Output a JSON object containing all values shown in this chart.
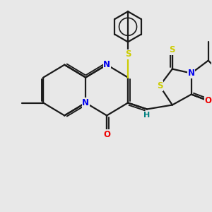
{
  "background_color": "#e8e8e8",
  "bond_color": "#1a1a1a",
  "bond_width": 1.6,
  "atom_colors": {
    "N": "#0000ee",
    "O": "#ee0000",
    "S": "#cccc00",
    "H": "#008080",
    "C": "#1a1a1a"
  },
  "fig_width": 3.0,
  "fig_height": 3.0,
  "dpi": 100
}
